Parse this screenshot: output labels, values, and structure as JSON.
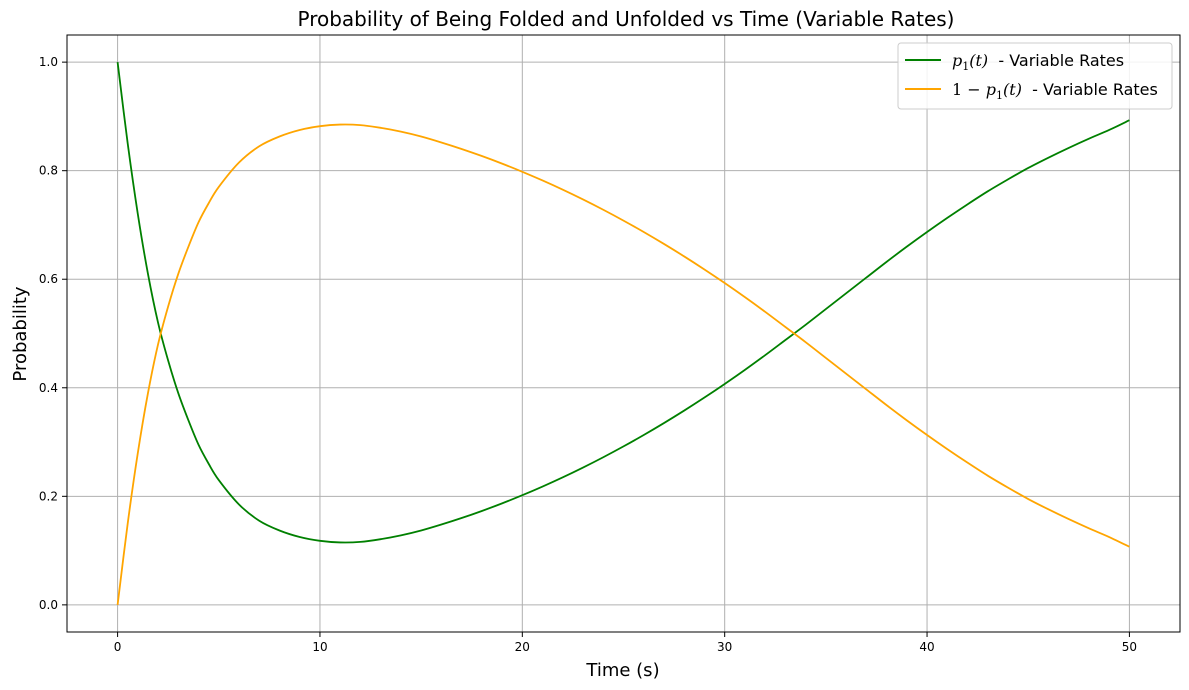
{
  "chart_data": {
    "type": "line",
    "title": "Probability of Being Folded and Unfolded vs Time (Variable Rates)",
    "xlabel": "Time (s)",
    "ylabel": "Probability",
    "xlim": [
      -2.5,
      52.5
    ],
    "ylim": [
      -0.05,
      1.05
    ],
    "xticks": [
      0,
      10,
      20,
      30,
      40,
      50
    ],
    "yticks": [
      0.0,
      0.2,
      0.4,
      0.6,
      0.8,
      1.0
    ],
    "xtick_labels": [
      "0",
      "10",
      "20",
      "30",
      "40",
      "50"
    ],
    "ytick_labels": [
      "0.0",
      "0.2",
      "0.4",
      "0.6",
      "0.8",
      "1.0"
    ],
    "grid": true,
    "legend_position": "top-right",
    "x": [
      0,
      0.5,
      1,
      1.5,
      2,
      2.5,
      3,
      3.5,
      4,
      4.5,
      5,
      6,
      7,
      8,
      9,
      10,
      11,
      12,
      13,
      14,
      15,
      16,
      17,
      18,
      19,
      20,
      21,
      22,
      23,
      24,
      25,
      26,
      27,
      28,
      29,
      30,
      31,
      32,
      33,
      34,
      35,
      36,
      37,
      38,
      39,
      40,
      41,
      42,
      43,
      44,
      45,
      46,
      47,
      48,
      49,
      50
    ],
    "series": [
      {
        "name": "p1(t) - Variable Rates",
        "color": "#008000",
        "values": [
          1.0,
          0.85,
          0.72,
          0.61,
          0.52,
          0.45,
          0.39,
          0.34,
          0.295,
          0.26,
          0.23,
          0.185,
          0.155,
          0.137,
          0.125,
          0.118,
          0.115,
          0.116,
          0.121,
          0.128,
          0.137,
          0.148,
          0.16,
          0.173,
          0.187,
          0.202,
          0.218,
          0.235,
          0.253,
          0.272,
          0.292,
          0.313,
          0.335,
          0.358,
          0.382,
          0.407,
          0.433,
          0.46,
          0.488,
          0.516,
          0.545,
          0.574,
          0.603,
          0.632,
          0.66,
          0.687,
          0.713,
          0.738,
          0.762,
          0.784,
          0.805,
          0.824,
          0.842,
          0.859,
          0.875,
          0.893
        ]
      },
      {
        "name": "1 − p1(t) - Variable Rates",
        "color": "#FFA500",
        "values": [
          0.0,
          0.15,
          0.28,
          0.39,
          0.48,
          0.55,
          0.61,
          0.66,
          0.705,
          0.74,
          0.77,
          0.815,
          0.845,
          0.863,
          0.875,
          0.882,
          0.885,
          0.884,
          0.879,
          0.872,
          0.863,
          0.852,
          0.84,
          0.827,
          0.813,
          0.798,
          0.782,
          0.765,
          0.747,
          0.728,
          0.708,
          0.687,
          0.665,
          0.642,
          0.618,
          0.593,
          0.567,
          0.54,
          0.512,
          0.484,
          0.455,
          0.426,
          0.397,
          0.368,
          0.34,
          0.313,
          0.287,
          0.262,
          0.238,
          0.216,
          0.195,
          0.176,
          0.158,
          0.141,
          0.125,
          0.107
        ]
      }
    ],
    "legend": {
      "entry1": {
        "math_p": "p",
        "math_sub": "1",
        "math_arg": "(t)",
        "suffix": "  - Variable Rates"
      },
      "entry2": {
        "math_prefix": "1 − ",
        "math_p": "p",
        "math_sub": "1",
        "math_arg": "(t)",
        "suffix": "  - Variable Rates"
      }
    },
    "grid_color": "#b0b0b0"
  }
}
